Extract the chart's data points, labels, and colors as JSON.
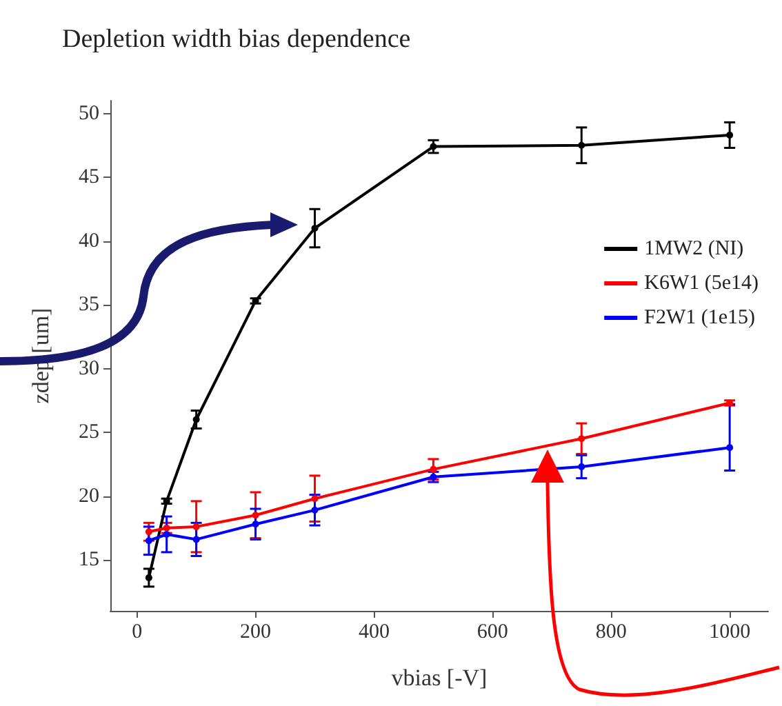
{
  "chart_data": {
    "type": "line",
    "title": "Depletion width bias dependence",
    "xlabel": "vbias [-V]",
    "ylabel": "zdep [um]",
    "x": [
      20,
      50,
      100,
      200,
      300,
      500,
      750,
      1000
    ],
    "series": [
      {
        "name": "1MW2 (NI)",
        "color": "#000000",
        "values": [
          13.6,
          19.6,
          26.0,
          35.3,
          41.0,
          47.4,
          47.5,
          48.3
        ],
        "errors": [
          0.7,
          0.2,
          0.7,
          0.2,
          1.5,
          0.5,
          1.4,
          1.0
        ]
      },
      {
        "name": "K6W1 (5e14)",
        "color": "#ff0000",
        "values": [
          17.2,
          17.5,
          17.6,
          18.5,
          19.8,
          22.1,
          24.5,
          27.3
        ],
        "errors": [
          0.7,
          0.4,
          2.0,
          1.8,
          1.8,
          0.8,
          1.2,
          0.2
        ]
      },
      {
        "name": "F2W1 (1e15)",
        "color": "#0000ff",
        "values": [
          16.5,
          17.0,
          16.6,
          17.8,
          18.9,
          21.5,
          22.3,
          23.8
        ],
        "errors": [
          1.1,
          1.4,
          1.3,
          1.2,
          1.2,
          0.4,
          0.9,
          [
            22.0,
            27.2
          ]
        ]
      }
    ],
    "xlim": [
      -45,
      1065
    ],
    "ylim": [
      11,
      51
    ],
    "xticks": [
      0,
      200,
      400,
      600,
      800,
      1000
    ],
    "yticks": [
      15,
      20,
      25,
      30,
      35,
      40,
      45,
      50
    ],
    "grid": false,
    "legend": "right",
    "marker": "circle",
    "line_style": "solid"
  }
}
